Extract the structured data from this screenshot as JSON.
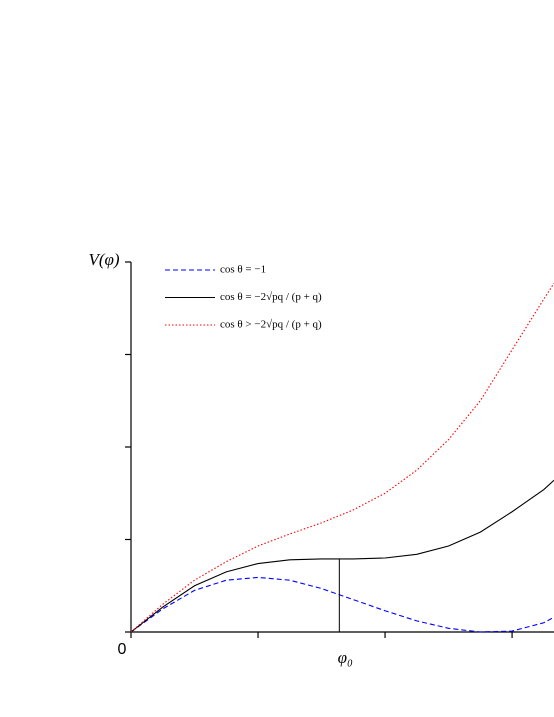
{
  "chart_data": {
    "type": "line",
    "y_label": "V(φ)",
    "origin_label": "0",
    "x": [
      0,
      0.25,
      0.5,
      0.75,
      1,
      1.25,
      1.5,
      1.75,
      2,
      2.25,
      2.5,
      2.75,
      3,
      3.25,
      3.33
    ],
    "series": [
      {
        "name": "cos θ = −1",
        "color": "#0000ff",
        "dash": "dashed",
        "values": [
          0,
          0.25,
          0.45,
          0.56,
          0.59,
          0.56,
          0.47,
          0.35,
          0.23,
          0.12,
          0.04,
          0.0,
          0.01,
          0.1,
          0.16
        ]
      },
      {
        "name": "cos θ = −2√pq / (p + q)",
        "color": "#000000",
        "dash": "solid",
        "values": [
          0,
          0.27,
          0.5,
          0.65,
          0.74,
          0.78,
          0.79,
          0.79,
          0.8,
          0.84,
          0.93,
          1.08,
          1.3,
          1.54,
          1.64
        ]
      },
      {
        "name": "cos θ > −2√pq / (p + q)",
        "color": "#ff0000",
        "dash": "dotted",
        "values": [
          0,
          0.3,
          0.56,
          0.76,
          0.93,
          1.06,
          1.18,
          1.32,
          1.5,
          1.75,
          2.08,
          2.5,
          3.05,
          3.6,
          3.77
        ]
      }
    ],
    "annotation": {
      "text": "φ₀",
      "x": 1.64,
      "y": 0.79
    },
    "xlim": [
      0,
      3.33
    ],
    "ylim": [
      0,
      4
    ],
    "xticks": [
      0,
      1,
      2,
      3
    ],
    "yticks": [
      0,
      1,
      2,
      3,
      4
    ],
    "legend": "upper left",
    "grid": false
  }
}
